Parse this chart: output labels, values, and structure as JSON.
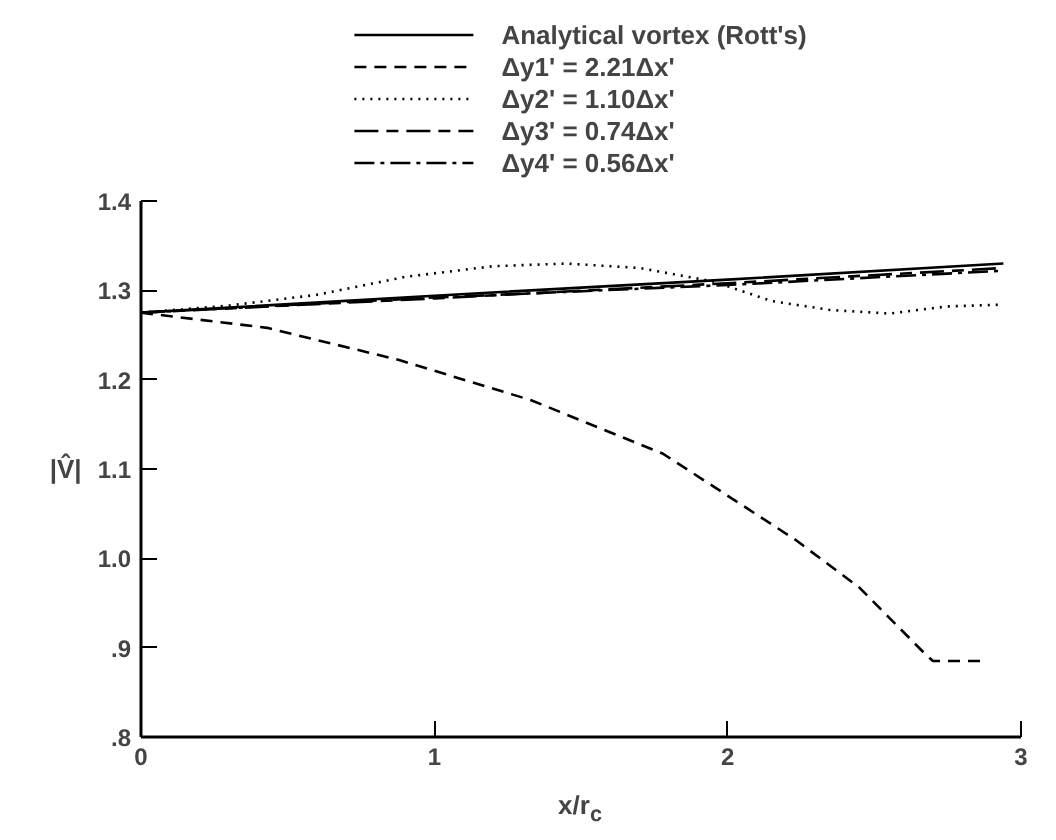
{
  "chart_data": {
    "type": "line",
    "xlabel": "x/r$_{c}$",
    "ylabel": "|V̂|",
    "xlim": [
      0,
      3
    ],
    "ylim": [
      0.8,
      1.4
    ],
    "xticks": [
      0,
      1,
      2,
      3
    ],
    "yticks": [
      {
        "value": 0.8,
        "label": ".8"
      },
      {
        "value": 0.9,
        "label": ".9"
      },
      {
        "value": 1.0,
        "label": "1.0"
      },
      1.1,
      1.2,
      1.3,
      1.4
    ],
    "grid": false,
    "legend": "top",
    "marker": "none",
    "series": [
      {
        "name": "Analytical vortex (Rott's)",
        "color": "#000000",
        "line_style": "solid",
        "x": [
          0,
          1.0,
          2.0,
          2.94
        ],
        "values": [
          1.275,
          1.294,
          1.312,
          1.33
        ]
      },
      {
        "name": "Δy1' = 2.21Δx'",
        "color": "#000000",
        "line_style": "dashed",
        "x": [
          0,
          0.43,
          0.88,
          1.33,
          1.78,
          2.23,
          2.45,
          2.67,
          2.7,
          2.88
        ],
        "values": [
          1.275,
          1.258,
          1.222,
          1.177,
          1.117,
          1.021,
          0.967,
          0.894,
          0.885,
          0.885
        ]
      },
      {
        "name": "Δy2' = 1.10Δx'",
        "color": "#000000",
        "line_style": "dotted",
        "x": [
          0,
          0.3,
          0.6,
          0.9,
          1.2,
          1.45,
          1.7,
          1.95,
          2.15,
          2.35,
          2.55,
          2.75,
          2.94
        ],
        "values": [
          1.275,
          1.283,
          1.295,
          1.315,
          1.327,
          1.33,
          1.325,
          1.31,
          1.288,
          1.278,
          1.274,
          1.282,
          1.284
        ]
      },
      {
        "name": "Δy3' = 0.74Δx'",
        "color": "#000000",
        "line_style": "longdash",
        "x": [
          0,
          1.0,
          2.0,
          2.94
        ],
        "values": [
          1.275,
          1.291,
          1.308,
          1.325
        ]
      },
      {
        "name": "Δy4' = 0.56Δx'",
        "color": "#000000",
        "line_style": "dashdot",
        "x": [
          0,
          1.0,
          2.0,
          2.94
        ],
        "values": [
          1.275,
          1.292,
          1.306,
          1.322
        ]
      }
    ]
  }
}
